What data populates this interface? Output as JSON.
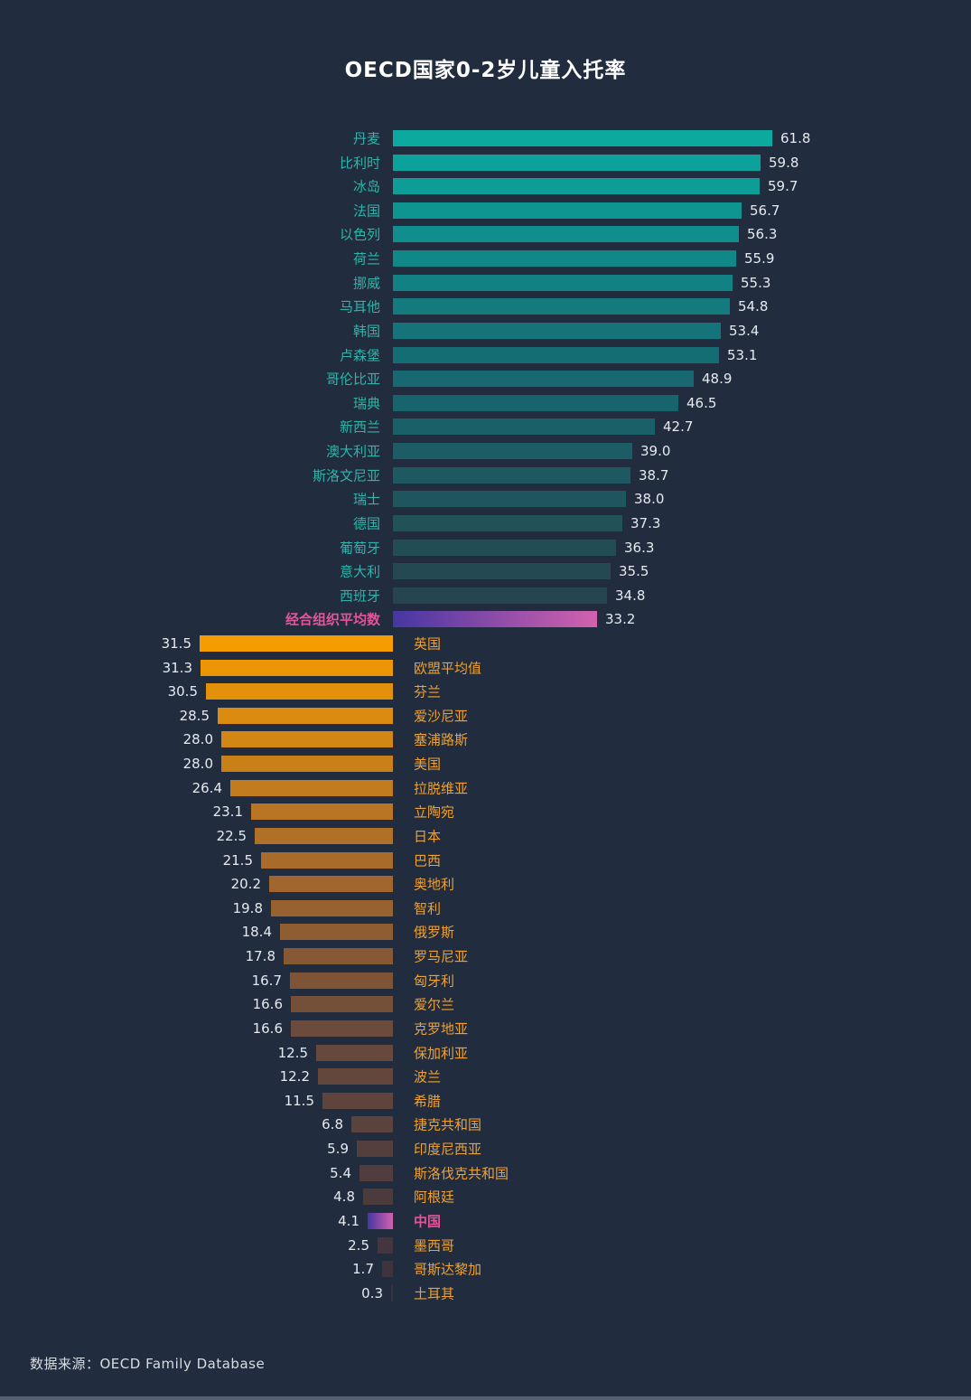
{
  "source": {
    "text": "数据来源：OECD Family Database"
  },
  "colors": {
    "background": "#212c3e",
    "title_text": "#ffffff",
    "high_group_label": "#2db5ab",
    "low_group_label": "#f0a12f",
    "emphasis_label": "#e4549a",
    "value_text": "#e7eaee",
    "average_gradient_start": "#4636a2",
    "average_gradient_end": "#d262ae",
    "bottom_edge_strip": "#566075"
  },
  "chart_data": {
    "type": "bar",
    "orientation": "horizontal-diverging",
    "title": "OECD国家0-2岁儿童入托率",
    "xlabel": "",
    "ylabel": "",
    "value_range": [
      0,
      61.8
    ],
    "grid": false,
    "legend": false,
    "rows": [
      {
        "label": "丹麦",
        "value": 61.8,
        "display": "61.8",
        "side": "right",
        "color": "#0ba9a0",
        "emphasis": false
      },
      {
        "label": "比利时",
        "value": 59.8,
        "display": "59.8",
        "side": "right",
        "color": "#0ca29b",
        "emphasis": false
      },
      {
        "label": "冰岛",
        "value": 59.7,
        "display": "59.7",
        "side": "right",
        "color": "#0d9c96",
        "emphasis": false
      },
      {
        "label": "法国",
        "value": 56.7,
        "display": "56.7",
        "side": "right",
        "color": "#0e9591",
        "emphasis": false
      },
      {
        "label": "以色列",
        "value": 56.3,
        "display": "56.3",
        "side": "right",
        "color": "#108e8d",
        "emphasis": false
      },
      {
        "label": "荷兰",
        "value": 55.9,
        "display": "55.9",
        "side": "right",
        "color": "#118888",
        "emphasis": false
      },
      {
        "label": "挪威",
        "value": 55.3,
        "display": "55.3",
        "side": "right",
        "color": "#128183",
        "emphasis": false
      },
      {
        "label": "马耳他",
        "value": 54.8,
        "display": "54.8",
        "side": "right",
        "color": "#137b7e",
        "emphasis": false
      },
      {
        "label": "韩国",
        "value": 53.4,
        "display": "53.4",
        "side": "right",
        "color": "#147479",
        "emphasis": false
      },
      {
        "label": "卢森堡",
        "value": 53.1,
        "display": "53.1",
        "side": "right",
        "color": "#156d74",
        "emphasis": false
      },
      {
        "label": "哥伦比亚",
        "value": 48.9,
        "display": "48.9",
        "side": "right",
        "color": "#176870",
        "emphasis": false
      },
      {
        "label": "瑞典",
        "value": 46.5,
        "display": "46.5",
        "side": "right",
        "color": "#18646c",
        "emphasis": false
      },
      {
        "label": "新西兰",
        "value": 42.7,
        "display": "42.7",
        "side": "right",
        "color": "#1a6068",
        "emphasis": false
      },
      {
        "label": "澳大利亚",
        "value": 39.0,
        "display": "39.0",
        "side": "right",
        "color": "#1c5c65",
        "emphasis": false
      },
      {
        "label": "斯洛文尼亚",
        "value": 38.7,
        "display": "38.7",
        "side": "right",
        "color": "#1e5861",
        "emphasis": false
      },
      {
        "label": "瑞士",
        "value": 38.0,
        "display": "38.0",
        "side": "right",
        "color": "#1f555d",
        "emphasis": false
      },
      {
        "label": "德国",
        "value": 37.3,
        "display": "37.3",
        "side": "right",
        "color": "#215159",
        "emphasis": false
      },
      {
        "label": "葡萄牙",
        "value": 36.3,
        "display": "36.3",
        "side": "right",
        "color": "#234d56",
        "emphasis": false
      },
      {
        "label": "意大利",
        "value": 35.5,
        "display": "35.5",
        "side": "right",
        "color": "#244952",
        "emphasis": false
      },
      {
        "label": "西班牙",
        "value": 34.8,
        "display": "34.8",
        "side": "right",
        "color": "#26454e",
        "emphasis": false
      },
      {
        "label": "经合组织平均数",
        "value": 33.2,
        "display": "33.2",
        "side": "right",
        "gradient": [
          "#4636a2",
          "#d262ae"
        ],
        "emphasis": true
      },
      {
        "label": "英国",
        "value": 31.5,
        "display": "31.5",
        "side": "left",
        "color": "#f49c00",
        "emphasis": false
      },
      {
        "label": "欧盟平均值",
        "value": 31.3,
        "display": "31.3",
        "side": "left",
        "color": "#ec9605",
        "emphasis": false
      },
      {
        "label": "芬兰",
        "value": 30.5,
        "display": "30.5",
        "side": "left",
        "color": "#e3910a",
        "emphasis": false
      },
      {
        "label": "爱沙尼亚",
        "value": 28.5,
        "display": "28.5",
        "side": "left",
        "color": "#db8b0f",
        "emphasis": false
      },
      {
        "label": "塞浦路斯",
        "value": 28.0,
        "display": "28.0",
        "side": "left",
        "color": "#d28614",
        "emphasis": false
      },
      {
        "label": "美国",
        "value": 28.0,
        "display": "28.0",
        "side": "left",
        "color": "#ca8019",
        "emphasis": false
      },
      {
        "label": "拉脱维亚",
        "value": 26.4,
        "display": "26.4",
        "side": "left",
        "color": "#c27b1e",
        "emphasis": false
      },
      {
        "label": "立陶宛",
        "value": 23.1,
        "display": "23.1",
        "side": "left",
        "color": "#b97523",
        "emphasis": false
      },
      {
        "label": "日本",
        "value": 22.5,
        "display": "22.5",
        "side": "left",
        "color": "#b17027",
        "emphasis": false
      },
      {
        "label": "巴西",
        "value": 21.5,
        "display": "21.5",
        "side": "left",
        "color": "#a86b2a",
        "emphasis": false
      },
      {
        "label": "奥地利",
        "value": 20.2,
        "display": "20.2",
        "side": "left",
        "color": "#a0662d",
        "emphasis": false
      },
      {
        "label": "智利",
        "value": 19.8,
        "display": "19.8",
        "side": "left",
        "color": "#97622f",
        "emphasis": false
      },
      {
        "label": "俄罗斯",
        "value": 18.4,
        "display": "18.4",
        "side": "left",
        "color": "#8f5d32",
        "emphasis": false
      },
      {
        "label": "罗马尼亚",
        "value": 17.8,
        "display": "17.8",
        "side": "left",
        "color": "#865934",
        "emphasis": false
      },
      {
        "label": "匈牙利",
        "value": 16.7,
        "display": "16.7",
        "side": "left",
        "color": "#7e5437",
        "emphasis": false
      },
      {
        "label": "爱尔兰",
        "value": 16.6,
        "display": "16.6",
        "side": "left",
        "color": "#755039",
        "emphasis": false
      },
      {
        "label": "克罗地亚",
        "value": 16.6,
        "display": "16.6",
        "side": "left",
        "color": "#6d4b3c",
        "emphasis": false
      },
      {
        "label": "保加利亚",
        "value": 12.5,
        "display": "12.5",
        "side": "left",
        "color": "#67483c",
        "emphasis": false
      },
      {
        "label": "波兰",
        "value": 12.2,
        "display": "12.2",
        "side": "left",
        "color": "#63463c",
        "emphasis": false
      },
      {
        "label": "希腊",
        "value": 11.5,
        "display": "11.5",
        "side": "left",
        "color": "#5e443d",
        "emphasis": false
      },
      {
        "label": "捷克共和国",
        "value": 6.8,
        "display": "6.8",
        "side": "left",
        "color": "#5a423d",
        "emphasis": false
      },
      {
        "label": "印度尼西亚",
        "value": 5.9,
        "display": "5.9",
        "side": "left",
        "color": "#553f3d",
        "emphasis": false
      },
      {
        "label": "斯洛伐克共和国",
        "value": 5.4,
        "display": "5.4",
        "side": "left",
        "color": "#513d3d",
        "emphasis": false
      },
      {
        "label": "阿根廷",
        "value": 4.8,
        "display": "4.8",
        "side": "left",
        "color": "#4c3b3d",
        "emphasis": false
      },
      {
        "label": "中国",
        "value": 4.1,
        "display": "4.1",
        "side": "left",
        "gradient": [
          "#4636a2",
          "#d262ae"
        ],
        "emphasis": true
      },
      {
        "label": "墨西哥",
        "value": 2.5,
        "display": "2.5",
        "side": "left",
        "color": "#43363e",
        "emphasis": false
      },
      {
        "label": "哥斯达黎加",
        "value": 1.7,
        "display": "1.7",
        "side": "left",
        "color": "#3f343e",
        "emphasis": false
      },
      {
        "label": "土耳其",
        "value": 0.3,
        "display": "0.3",
        "side": "left",
        "color": "#3a323e",
        "emphasis": false
      }
    ]
  }
}
